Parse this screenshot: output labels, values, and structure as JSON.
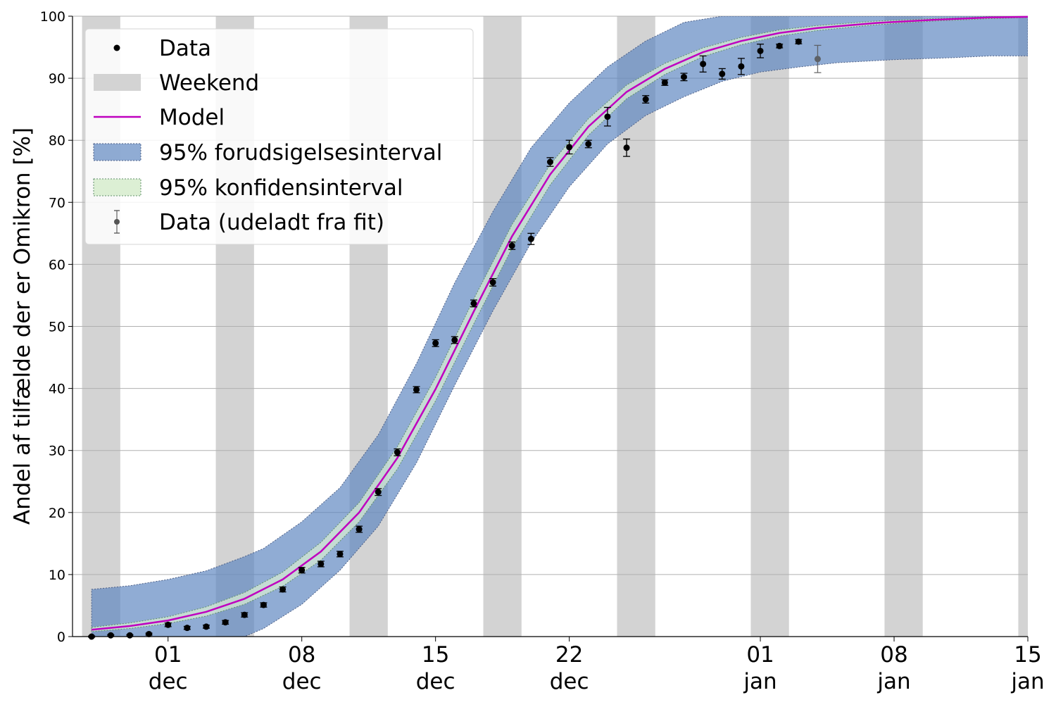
{
  "chart_data": {
    "type": "scatter",
    "ylabel": "Andel af tilfælde der er Omikron [%]",
    "ylim": [
      0,
      100
    ],
    "y_ticks": [
      0,
      10,
      20,
      30,
      40,
      50,
      60,
      70,
      80,
      90,
      100
    ],
    "xlim": [
      "2021-11-26",
      "2022-01-15"
    ],
    "x_ticks": [
      {
        "date": "2021-12-01",
        "day": "01",
        "month": "dec"
      },
      {
        "date": "2021-12-08",
        "day": "08",
        "month": "dec"
      },
      {
        "date": "2021-12-15",
        "day": "15",
        "month": "dec"
      },
      {
        "date": "2021-12-22",
        "day": "22",
        "month": "dec"
      },
      {
        "date": "2022-01-01",
        "day": "01",
        "month": "jan"
      },
      {
        "date": "2022-01-08",
        "day": "08",
        "month": "jan"
      },
      {
        "date": "2022-01-15",
        "day": "15",
        "month": "jan"
      }
    ],
    "grid": "horizontal",
    "legend_position": "top-left",
    "legend": [
      {
        "key": "data",
        "label": "Data"
      },
      {
        "key": "weekend",
        "label": "Weekend"
      },
      {
        "key": "model",
        "label": "Model"
      },
      {
        "key": "prediction",
        "label": "95% forudsigelsesinterval"
      },
      {
        "key": "confidence",
        "label": "95% konfidensinterval"
      },
      {
        "key": "excluded",
        "label": "Data (udeladt fra fit)"
      }
    ],
    "colors": {
      "data": "#000000",
      "weekend": "#d3d3d3",
      "model": "#bf00bf",
      "prediction": "#5b85c0",
      "confidence": "#dcefd4",
      "excluded": "#555555",
      "grid": "#b0b0b0"
    },
    "weekends": [
      [
        "2021-11-26T12:00",
        "2021-11-28T12:00"
      ],
      [
        "2021-12-03T12:00",
        "2021-12-05T12:00"
      ],
      [
        "2021-12-10T12:00",
        "2021-12-12T12:00"
      ],
      [
        "2021-12-17T12:00",
        "2021-12-19T12:00"
      ],
      [
        "2021-12-24T12:00",
        "2021-12-26T12:00"
      ],
      [
        "2021-12-31T12:00",
        "2022-01-02T12:00"
      ],
      [
        "2022-01-07T12:00",
        "2022-01-09T12:00"
      ],
      [
        "2022-01-14T12:00",
        "2022-01-16T12:00"
      ]
    ],
    "data": [
      {
        "x": "2021-11-27",
        "y": 0.0,
        "err": 0.1
      },
      {
        "x": "2021-11-28",
        "y": 0.2,
        "err": 0.1
      },
      {
        "x": "2021-11-29",
        "y": 0.2,
        "err": 0.1
      },
      {
        "x": "2021-11-30",
        "y": 0.4,
        "err": 0.15
      },
      {
        "x": "2021-12-01",
        "y": 1.9,
        "err": 0.3
      },
      {
        "x": "2021-12-02",
        "y": 1.4,
        "err": 0.25
      },
      {
        "x": "2021-12-03",
        "y": 1.6,
        "err": 0.25
      },
      {
        "x": "2021-12-04",
        "y": 2.3,
        "err": 0.3
      },
      {
        "x": "2021-12-05",
        "y": 3.5,
        "err": 0.35
      },
      {
        "x": "2021-12-06",
        "y": 5.1,
        "err": 0.35
      },
      {
        "x": "2021-12-07",
        "y": 7.6,
        "err": 0.4
      },
      {
        "x": "2021-12-08",
        "y": 10.7,
        "err": 0.45
      },
      {
        "x": "2021-12-09",
        "y": 11.7,
        "err": 0.45
      },
      {
        "x": "2021-12-10",
        "y": 13.3,
        "err": 0.45
      },
      {
        "x": "2021-12-11",
        "y": 17.3,
        "err": 0.5
      },
      {
        "x": "2021-12-12",
        "y": 23.3,
        "err": 0.55
      },
      {
        "x": "2021-12-13",
        "y": 29.7,
        "err": 0.55
      },
      {
        "x": "2021-12-14",
        "y": 39.8,
        "err": 0.5
      },
      {
        "x": "2021-12-15",
        "y": 47.3,
        "err": 0.55
      },
      {
        "x": "2021-12-16",
        "y": 47.8,
        "err": 0.55
      },
      {
        "x": "2021-12-17",
        "y": 53.7,
        "err": 0.55
      },
      {
        "x": "2021-12-18",
        "y": 57.1,
        "err": 0.6
      },
      {
        "x": "2021-12-19",
        "y": 63.0,
        "err": 0.6
      },
      {
        "x": "2021-12-20",
        "y": 64.1,
        "err": 0.9
      },
      {
        "x": "2021-12-21",
        "y": 76.5,
        "err": 0.7
      },
      {
        "x": "2021-12-22",
        "y": 78.9,
        "err": 1.1
      },
      {
        "x": "2021-12-23",
        "y": 79.4,
        "err": 0.6
      },
      {
        "x": "2021-12-24",
        "y": 83.8,
        "err": 1.5
      },
      {
        "x": "2021-12-25",
        "y": 78.8,
        "err": 1.4
      },
      {
        "x": "2021-12-26",
        "y": 86.6,
        "err": 0.6
      },
      {
        "x": "2021-12-27",
        "y": 89.3,
        "err": 0.45
      },
      {
        "x": "2021-12-28",
        "y": 90.2,
        "err": 0.6
      },
      {
        "x": "2021-12-29",
        "y": 92.3,
        "err": 1.3
      },
      {
        "x": "2021-12-30",
        "y": 90.7,
        "err": 0.85
      },
      {
        "x": "2021-12-31",
        "y": 91.9,
        "err": 1.3
      },
      {
        "x": "2022-01-01",
        "y": 94.4,
        "err": 1.1
      },
      {
        "x": "2022-01-02",
        "y": 95.2,
        "err": 0.3
      },
      {
        "x": "2022-01-03",
        "y": 95.9,
        "err": 0.35
      }
    ],
    "excluded": [
      {
        "x": "2022-01-04",
        "y": 93.1,
        "err": 2.2
      }
    ],
    "model": [
      {
        "x": "2021-11-27",
        "y": 1.1
      },
      {
        "x": "2021-11-29",
        "y": 1.7
      },
      {
        "x": "2021-12-01",
        "y": 2.6
      },
      {
        "x": "2021-12-03",
        "y": 4.0
      },
      {
        "x": "2021-12-05",
        "y": 6.1
      },
      {
        "x": "2021-12-07",
        "y": 9.2
      },
      {
        "x": "2021-12-09",
        "y": 13.7
      },
      {
        "x": "2021-12-11",
        "y": 20.0
      },
      {
        "x": "2021-12-13",
        "y": 28.8
      },
      {
        "x": "2021-12-15",
        "y": 39.9
      },
      {
        "x": "2021-12-17",
        "y": 52.4
      },
      {
        "x": "2021-12-19",
        "y": 64.5
      },
      {
        "x": "2021-12-21",
        "y": 74.5
      },
      {
        "x": "2021-12-23",
        "y": 82.2
      },
      {
        "x": "2021-12-25",
        "y": 87.8
      },
      {
        "x": "2021-12-27",
        "y": 91.5
      },
      {
        "x": "2021-12-29",
        "y": 94.2
      },
      {
        "x": "2021-12-31",
        "y": 96.0
      },
      {
        "x": "2022-01-02",
        "y": 97.3
      },
      {
        "x": "2022-01-04",
        "y": 98.1
      },
      {
        "x": "2022-01-07",
        "y": 98.9
      },
      {
        "x": "2022-01-10",
        "y": 99.4
      },
      {
        "x": "2022-01-13",
        "y": 99.8
      },
      {
        "x": "2022-01-15",
        "y": 99.9
      }
    ],
    "confidence_band": [
      {
        "x": "2021-11-27",
        "low": 0.8,
        "high": 1.5
      },
      {
        "x": "2021-11-29",
        "low": 1.3,
        "high": 2.2
      },
      {
        "x": "2021-12-01",
        "low": 2.1,
        "high": 3.2
      },
      {
        "x": "2021-12-03",
        "low": 3.3,
        "high": 4.8
      },
      {
        "x": "2021-12-05",
        "low": 5.2,
        "high": 7.1
      },
      {
        "x": "2021-12-07",
        "low": 8.1,
        "high": 10.4
      },
      {
        "x": "2021-12-09",
        "low": 12.3,
        "high": 15.2
      },
      {
        "x": "2021-12-11",
        "low": 18.5,
        "high": 21.6
      },
      {
        "x": "2021-12-13",
        "low": 27.0,
        "high": 30.6
      },
      {
        "x": "2021-12-15",
        "low": 38.0,
        "high": 41.8
      },
      {
        "x": "2021-12-17",
        "low": 50.4,
        "high": 54.4
      },
      {
        "x": "2021-12-19",
        "low": 62.6,
        "high": 66.4
      },
      {
        "x": "2021-12-21",
        "low": 72.8,
        "high": 76.1
      },
      {
        "x": "2021-12-23",
        "low": 80.8,
        "high": 83.5
      },
      {
        "x": "2021-12-25",
        "low": 86.7,
        "high": 88.9
      },
      {
        "x": "2021-12-27",
        "low": 90.6,
        "high": 92.4
      },
      {
        "x": "2021-12-29",
        "low": 93.5,
        "high": 94.9
      },
      {
        "x": "2021-12-31",
        "low": 95.4,
        "high": 96.6
      },
      {
        "x": "2022-01-02",
        "low": 96.8,
        "high": 97.8
      },
      {
        "x": "2022-01-04",
        "low": 97.7,
        "high": 98.5
      },
      {
        "x": "2022-01-07",
        "low": 98.6,
        "high": 99.2
      },
      {
        "x": "2022-01-10",
        "low": 99.2,
        "high": 99.6
      },
      {
        "x": "2022-01-13",
        "low": 99.6,
        "high": 99.9
      },
      {
        "x": "2022-01-15",
        "low": 99.8,
        "high": 100.0
      }
    ],
    "prediction_band": [
      {
        "x": "2021-11-27",
        "low": 0.0,
        "high": 7.6
      },
      {
        "x": "2021-11-29",
        "low": 0.0,
        "high": 8.2
      },
      {
        "x": "2021-12-01",
        "low": 0.0,
        "high": 9.2
      },
      {
        "x": "2021-12-03",
        "low": 0.0,
        "high": 10.6
      },
      {
        "x": "2021-12-05",
        "low": 0.0,
        "high": 12.9
      },
      {
        "x": "2021-12-06",
        "low": 1.3,
        "high": 14.2
      },
      {
        "x": "2021-12-08",
        "low": 5.2,
        "high": 18.5
      },
      {
        "x": "2021-12-10",
        "low": 10.7,
        "high": 24.0
      },
      {
        "x": "2021-12-12",
        "low": 17.8,
        "high": 32.5
      },
      {
        "x": "2021-12-14",
        "low": 28.0,
        "high": 44.0
      },
      {
        "x": "2021-12-16",
        "low": 40.5,
        "high": 57.0
      },
      {
        "x": "2021-12-18",
        "low": 52.5,
        "high": 68.5
      },
      {
        "x": "2021-12-20",
        "low": 63.5,
        "high": 78.8
      },
      {
        "x": "2021-12-22",
        "low": 72.5,
        "high": 86.0
      },
      {
        "x": "2021-12-24",
        "low": 79.4,
        "high": 91.8
      },
      {
        "x": "2021-12-26",
        "low": 84.0,
        "high": 96.0
      },
      {
        "x": "2021-12-28",
        "low": 87.0,
        "high": 99.0
      },
      {
        "x": "2021-12-30",
        "low": 89.5,
        "high": 100.0
      },
      {
        "x": "2022-01-01",
        "low": 91.0,
        "high": 100.0
      },
      {
        "x": "2022-01-03",
        "low": 91.8,
        "high": 100.0
      },
      {
        "x": "2022-01-05",
        "low": 92.5,
        "high": 100.0
      },
      {
        "x": "2022-01-08",
        "low": 93.0,
        "high": 100.0
      },
      {
        "x": "2022-01-11",
        "low": 93.3,
        "high": 100.0
      },
      {
        "x": "2022-01-13",
        "low": 93.6,
        "high": 100.0
      },
      {
        "x": "2022-01-15",
        "low": 93.6,
        "high": 100.0
      }
    ]
  }
}
